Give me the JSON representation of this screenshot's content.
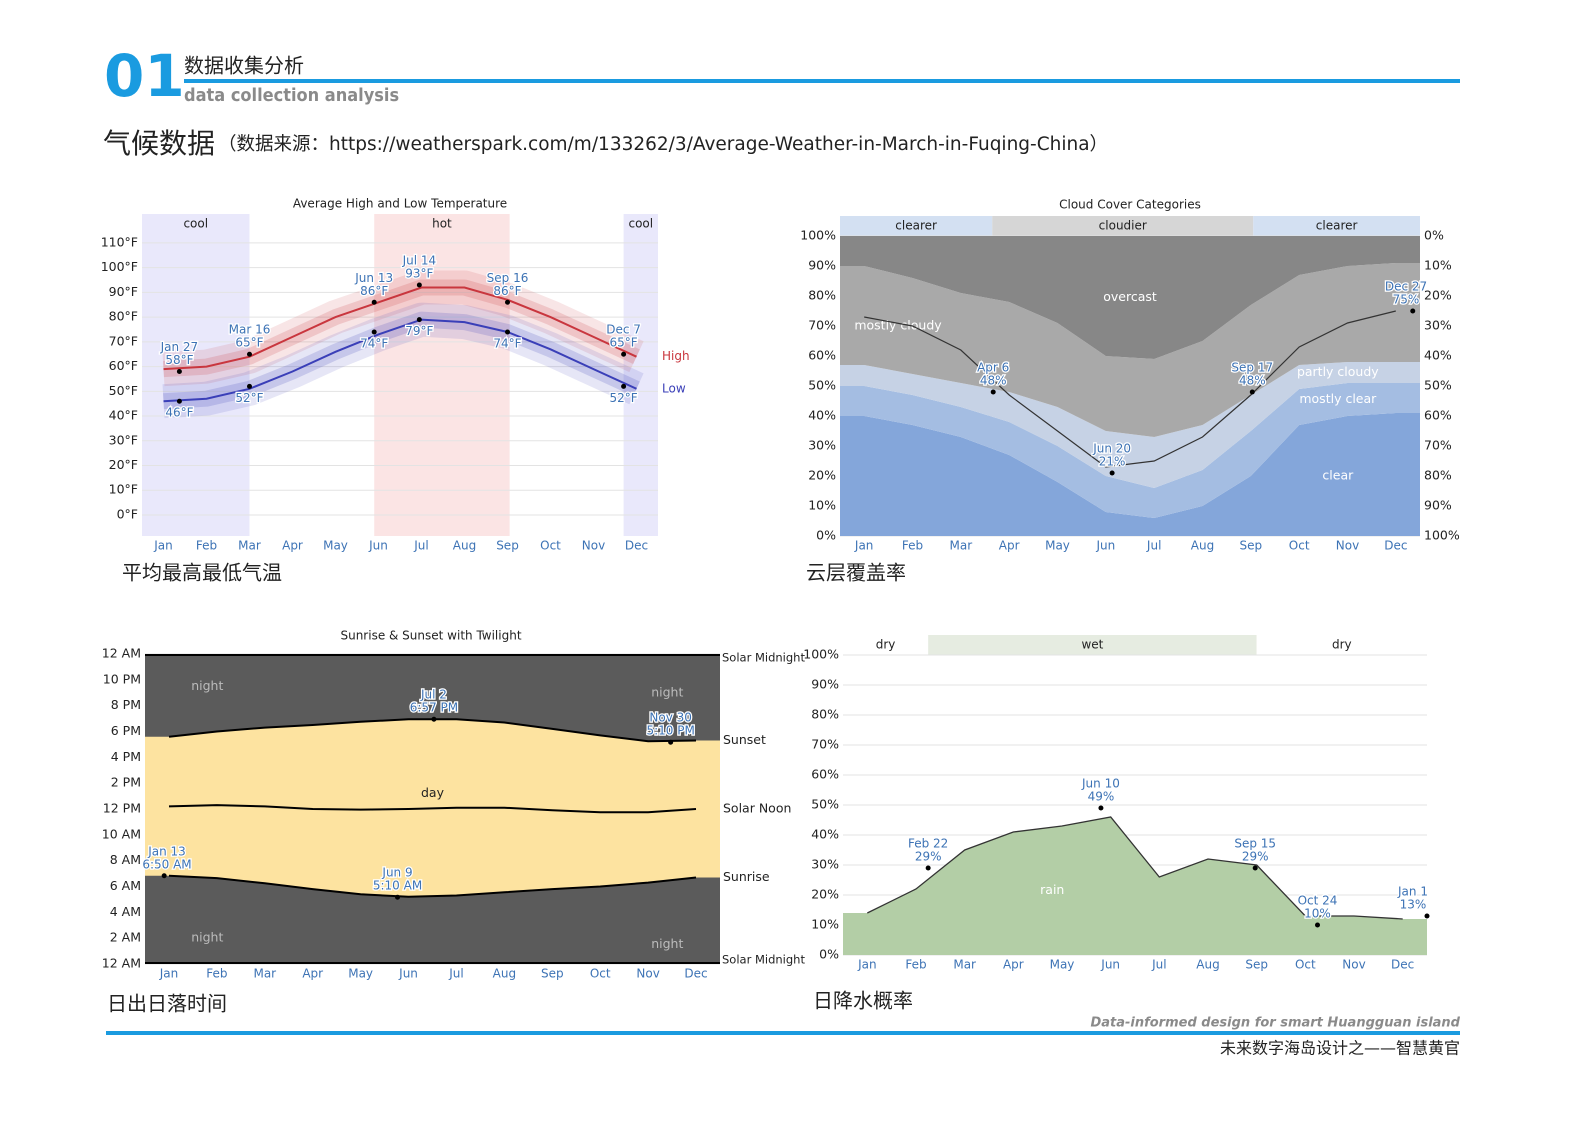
{
  "header": {
    "number": "01",
    "title": "数据收集分析",
    "subtitle": "data collection analysis"
  },
  "section": {
    "title": "气候数据",
    "source": "（数据来源：https://weatherspark.com/m/133262/3/Average-Weather-in-March-in-Fuqing-China）"
  },
  "chart_data": [
    {
      "type": "line",
      "title": "Average High and Low Temperature",
      "caption": "平均最高最低气温",
      "categories": [
        "Jan",
        "Feb",
        "Mar",
        "Apr",
        "May",
        "Jun",
        "Jul",
        "Aug",
        "Sep",
        "Oct",
        "Nov",
        "Dec"
      ],
      "series": [
        {
          "name": "High",
          "color": "#c9363e",
          "values": [
            59,
            60,
            64,
            72,
            80,
            86,
            92,
            92,
            87,
            80,
            72,
            64
          ]
        },
        {
          "name": "Low",
          "color": "#3a3fb8",
          "values": [
            46,
            47,
            51,
            58,
            66,
            73,
            79,
            78,
            74,
            67,
            59,
            51
          ]
        }
      ],
      "bands": [
        {
          "label": "cool",
          "start": 0,
          "end": 2.5,
          "color": "#e9e8fb"
        },
        {
          "label": "hot",
          "start": 5.4,
          "end": 8.55,
          "color": "#fbe4e4"
        },
        {
          "label": "cool",
          "start": 11.2,
          "end": 12,
          "color": "#e9e8fb"
        }
      ],
      "annotations": [
        {
          "x": 0.87,
          "date": "Jan 27",
          "value": 58,
          "label": "58°F"
        },
        {
          "x": 2.5,
          "date": "Mar 16",
          "value": 65,
          "label": "65°F"
        },
        {
          "x": 5.4,
          "date": "Jun 13",
          "value": 86,
          "label": "86°F"
        },
        {
          "x": 6.45,
          "date": "Jul 14",
          "value": 93,
          "label": "93°F"
        },
        {
          "x": 8.5,
          "date": "Sep 16",
          "value": 86,
          "label": "86°F"
        },
        {
          "x": 11.2,
          "date": "Dec 7",
          "value": 65,
          "label": "65°F"
        },
        {
          "x": 0.87,
          "value": 46,
          "label": "46°F"
        },
        {
          "x": 2.5,
          "value": 52,
          "label": "52°F"
        },
        {
          "x": 5.4,
          "value": 74,
          "label": "74°F"
        },
        {
          "x": 6.45,
          "value": 79,
          "label": "79°F"
        },
        {
          "x": 8.5,
          "value": 74,
          "label": "74°F"
        },
        {
          "x": 11.2,
          "value": 52,
          "label": "52°F"
        }
      ],
      "ylim": [
        -8.5,
        121.7
      ],
      "yticks": [
        {
          "value": 0,
          "label": "0°F"
        },
        {
          "value": 10,
          "label": "10°F"
        },
        {
          "value": 20,
          "label": "20°F"
        },
        {
          "value": 30,
          "label": "30°F"
        },
        {
          "value": 40,
          "label": "40°F"
        },
        {
          "value": 50,
          "label": "50°F"
        },
        {
          "value": 60,
          "label": "60°F"
        },
        {
          "value": 70,
          "label": "70°F"
        },
        {
          "value": 80,
          "label": "80°F"
        },
        {
          "value": 90,
          "label": "90°F"
        },
        {
          "value": 100,
          "label": "100°F"
        },
        {
          "value": 110,
          "label": "110°F"
        }
      ],
      "grid": true
    },
    {
      "type": "area",
      "stacked": true,
      "title": "Cloud Cover Categories",
      "caption": "云层覆盖率",
      "categories": [
        "Jan",
        "Feb",
        "Mar",
        "Apr",
        "May",
        "Jun",
        "Jul",
        "Aug",
        "Sep",
        "Oct",
        "Nov",
        "Dec"
      ],
      "series": [
        {
          "name": "clear",
          "color": "#84a6da",
          "values": [
            40,
            37,
            33,
            27,
            18,
            8,
            6,
            10,
            20,
            37,
            40,
            41
          ]
        },
        {
          "name": "mostly clear",
          "color": "#a4bde2",
          "values": [
            10,
            10,
            10,
            11,
            12,
            12,
            10,
            12,
            15,
            12,
            11,
            10
          ]
        },
        {
          "name": "partly cloudy",
          "color": "#c6d2e5",
          "values": [
            7,
            7,
            8,
            10,
            13,
            15,
            17,
            15,
            12,
            8,
            7,
            7
          ]
        },
        {
          "name": "mostly cloudy",
          "color": "#a9a9a9",
          "values": [
            33,
            32,
            30,
            30,
            28,
            25,
            26,
            28,
            30,
            30,
            32,
            33
          ]
        },
        {
          "name": "overcast",
          "color": "#878787",
          "values": [
            10,
            14,
            19,
            22,
            29,
            40,
            41,
            35,
            23,
            13,
            10,
            9
          ]
        }
      ],
      "line": {
        "color": "#333333",
        "values": [
          73,
          70,
          62,
          47,
          35,
          23,
          25,
          33,
          47,
          63,
          71,
          75
        ]
      },
      "bands": [
        {
          "label": "clearer",
          "start": 0,
          "end": 3.15,
          "color": "#d3e0f2"
        },
        {
          "label": "cloudier",
          "start": 3.15,
          "end": 8.55,
          "color": "#d6d6d6"
        },
        {
          "label": "clearer",
          "start": 8.55,
          "end": 12,
          "color": "#d3e0f2"
        }
      ],
      "annotations": [
        {
          "x": 3.17,
          "date": "Apr 6",
          "value": 48,
          "label": "48%"
        },
        {
          "x": 5.63,
          "date": "Jun 20",
          "value": 21,
          "label": "21%"
        },
        {
          "x": 8.53,
          "date": "Sep 17",
          "value": 48,
          "label": "48%"
        },
        {
          "x": 11.85,
          "date": "Dec 27",
          "value": 75,
          "label": "75%"
        }
      ],
      "ylim": [
        0,
        100
      ],
      "yticks": [
        {
          "value": 0,
          "label": "0%"
        },
        {
          "value": 10,
          "label": "10%"
        },
        {
          "value": 20,
          "label": "20%"
        },
        {
          "value": 30,
          "label": "30%"
        },
        {
          "value": 40,
          "label": "40%"
        },
        {
          "value": 50,
          "label": "50%"
        },
        {
          "value": 60,
          "label": "60%"
        },
        {
          "value": 70,
          "label": "70%"
        },
        {
          "value": 80,
          "label": "80%"
        },
        {
          "value": 90,
          "label": "90%"
        },
        {
          "value": 100,
          "label": "100%"
        }
      ],
      "y2lim": [
        100,
        0
      ],
      "y2ticks": [
        {
          "value": 0,
          "label": "0%"
        },
        {
          "value": 10,
          "label": "10%"
        },
        {
          "value": 20,
          "label": "20%"
        },
        {
          "value": 30,
          "label": "30%"
        },
        {
          "value": 40,
          "label": "40%"
        },
        {
          "value": 50,
          "label": "50%"
        },
        {
          "value": 60,
          "label": "60%"
        },
        {
          "value": 70,
          "label": "70%"
        },
        {
          "value": 80,
          "label": "80%"
        },
        {
          "value": 90,
          "label": "90%"
        },
        {
          "value": 100,
          "label": "100%"
        }
      ],
      "grid": true
    },
    {
      "type": "daylight",
      "title": "Sunrise & Sunset with Twilight",
      "caption": "日出日落时间",
      "categories": [
        "Jan",
        "Feb",
        "Mar",
        "Apr",
        "May",
        "Jun",
        "Jul",
        "Aug",
        "Sep",
        "Oct",
        "Nov",
        "Dec"
      ],
      "series": [
        {
          "name": "Sunset",
          "color": "#fde3a0",
          "fill": true,
          "values": [
            17.6,
            18.0,
            18.3,
            18.5,
            18.75,
            18.95,
            18.95,
            18.7,
            18.2,
            17.7,
            17.25,
            17.3
          ]
        },
        {
          "name": "Sunrise",
          "color": "#5b5b5b",
          "fill": true,
          "values": [
            6.83,
            6.65,
            6.25,
            5.8,
            5.4,
            5.2,
            5.3,
            5.55,
            5.8,
            6.0,
            6.3,
            6.7
          ]
        },
        {
          "name": "Solar Noon",
          "color": "#000000",
          "values": [
            12.2,
            12.3,
            12.2,
            12.0,
            11.95,
            12.0,
            12.1,
            12.1,
            11.9,
            11.75,
            11.75,
            12.0
          ]
        }
      ],
      "top_label": "Solar Midnight",
      "bottom_label": "Solar Midnight",
      "night_label": "night",
      "day_label": "day",
      "annotations": [
        {
          "x": 0.4,
          "date": "Jan 13",
          "value": 6.83,
          "label": "6:50 AM"
        },
        {
          "x": 5.27,
          "date": "Jun 9",
          "value": 5.17,
          "label": "5:10 AM"
        },
        {
          "x": 6.03,
          "date": "Jul 2",
          "value": 18.95,
          "label": "6:57 PM"
        },
        {
          "x": 10.97,
          "date": "Nov 30",
          "value": 17.17,
          "label": "5:10 PM"
        }
      ],
      "ylim": [
        0,
        24
      ],
      "yticks": [
        {
          "value": 0,
          "label": "12 AM"
        },
        {
          "value": 2,
          "label": "2 AM"
        },
        {
          "value": 4,
          "label": "4 AM"
        },
        {
          "value": 6,
          "label": "6 AM"
        },
        {
          "value": 8,
          "label": "8 AM"
        },
        {
          "value": 10,
          "label": "10 AM"
        },
        {
          "value": 12,
          "label": "12 PM"
        },
        {
          "value": 14,
          "label": "2 PM"
        },
        {
          "value": 16,
          "label": "4 PM"
        },
        {
          "value": 18,
          "label": "6 PM"
        },
        {
          "value": 20,
          "label": "8 PM"
        },
        {
          "value": 22,
          "label": "10 PM"
        },
        {
          "value": 24,
          "label": "12 AM"
        }
      ],
      "grid": true
    },
    {
      "type": "area",
      "caption": "日降水概率",
      "categories": [
        "Jan",
        "Feb",
        "Mar",
        "Apr",
        "May",
        "Jun",
        "Jul",
        "Aug",
        "Sep",
        "Oct",
        "Nov",
        "Dec"
      ],
      "series": [
        {
          "name": "rain",
          "color": "#b3cea6",
          "values": [
            14,
            22,
            35,
            41,
            43,
            46,
            26,
            32,
            30,
            13,
            13,
            12
          ]
        }
      ],
      "bands": [
        {
          "label": "dry",
          "start": 0,
          "end": 1.75,
          "color": "#ffffff"
        },
        {
          "label": "wet",
          "start": 1.75,
          "end": 8.5,
          "color": "#e6ece1"
        },
        {
          "label": "dry",
          "start": 8.5,
          "end": 12,
          "color": "#ffffff"
        }
      ],
      "annotations": [
        {
          "x": 1.75,
          "date": "Feb 22",
          "value": 29,
          "label": "29%"
        },
        {
          "x": 5.3,
          "date": "Jun 10",
          "value": 49,
          "label": "49%"
        },
        {
          "x": 8.47,
          "date": "Sep 15",
          "value": 29,
          "label": "29%"
        },
        {
          "x": 9.75,
          "date": "Oct 24",
          "value": 10,
          "label": "10%"
        },
        {
          "x": 12,
          "date": "Jan 1",
          "value": 13,
          "label": "13%"
        }
      ],
      "ylim": [
        0,
        100
      ],
      "yticks": [
        {
          "value": 0,
          "label": "0%"
        },
        {
          "value": 10,
          "label": "10%"
        },
        {
          "value": 20,
          "label": "20%"
        },
        {
          "value": 30,
          "label": "30%"
        },
        {
          "value": 40,
          "label": "40%"
        },
        {
          "value": 50,
          "label": "50%"
        },
        {
          "value": 60,
          "label": "60%"
        },
        {
          "value": 70,
          "label": "70%"
        },
        {
          "value": 80,
          "label": "80%"
        },
        {
          "value": 90,
          "label": "90%"
        },
        {
          "value": 100,
          "label": "100%"
        }
      ],
      "grid": true
    }
  ],
  "footer": {
    "english": "Data-informed design for smart Huangguan island",
    "chinese": "未来数字海岛设计之——智慧黄官"
  }
}
